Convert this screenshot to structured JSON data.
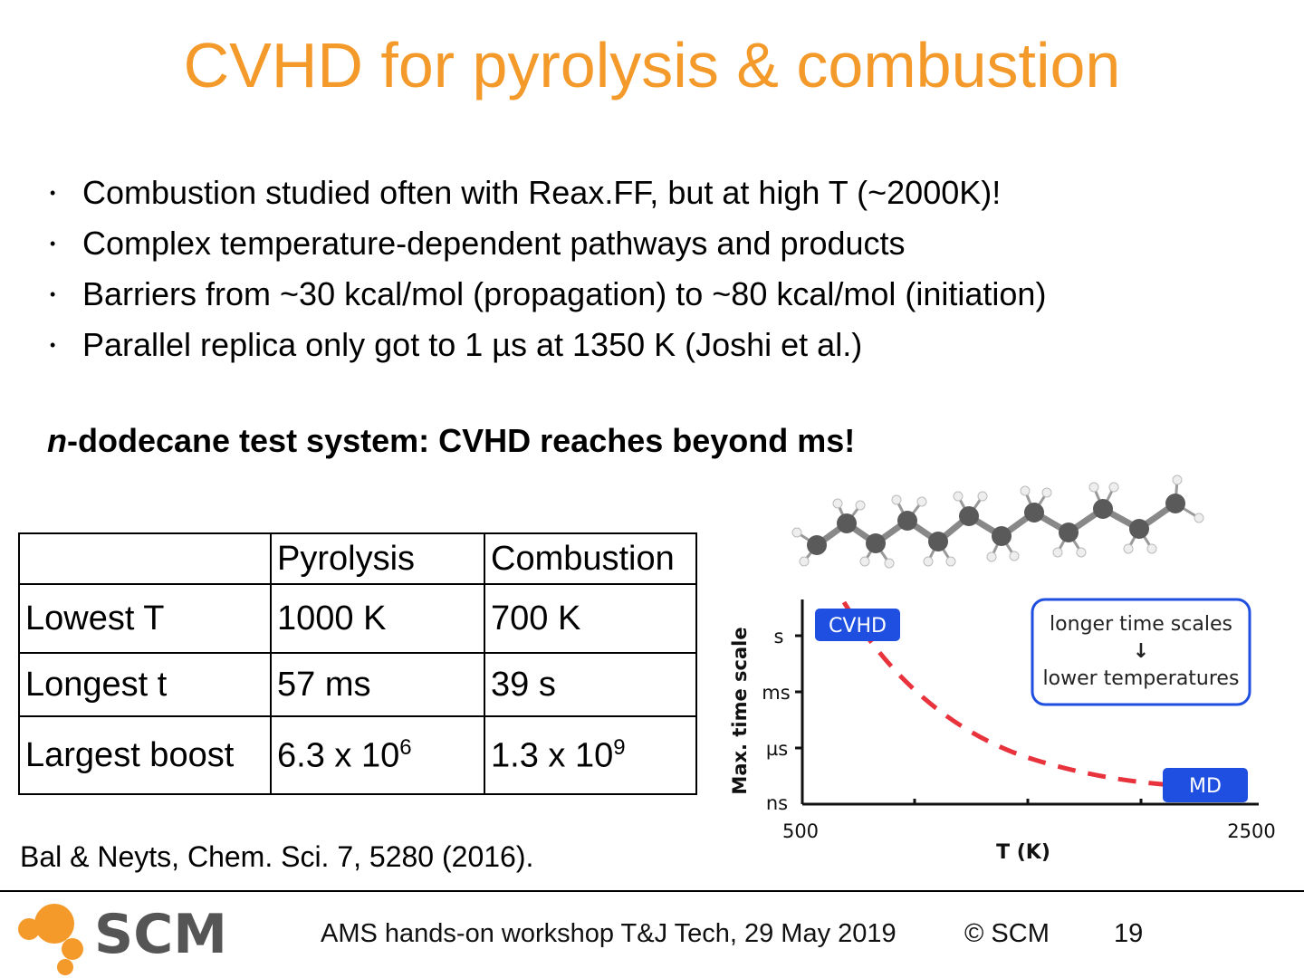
{
  "slide": {
    "title": "CVHD for pyrolysis & combustion",
    "bullets": [
      "Combustion studied often with Reax.FF, but at high T (~2000K)!",
      "Complex temperature-dependent pathways and products",
      "Barriers from ~30 kcal/mol (propagation) to ~80 kcal/mol (initiation)",
      "Parallel replica only got to 1 µs at 1350 K (Joshi et al.)"
    ],
    "bullet_symbol": "•",
    "subheading_italic": "n",
    "subheading_rest": "-dodecane test system: CVHD reaches beyond ms!"
  },
  "table": {
    "headers": [
      "",
      "Pyrolysis",
      "Combustion"
    ],
    "rows": [
      {
        "label": "Lowest T",
        "pyrolysis": "1000 K",
        "combustion": "700 K"
      },
      {
        "label": "Longest t",
        "pyrolysis": "57 ms",
        "combustion": "39 s"
      },
      {
        "label": "Largest boost",
        "pyrolysis_base": "6.3 x 10",
        "pyrolysis_exp": "6",
        "combustion_base": "1.3 x 10",
        "combustion_exp": "9"
      }
    ]
  },
  "citation": "Bal & Neyts, Chem. Sci. 7, 5280 (2016).",
  "figure": {
    "ylabel": "Max. time scale",
    "xlabel": "T (K)",
    "yticks": [
      "s",
      "ms",
      "µs",
      "ns"
    ],
    "xticks": [
      "500",
      "2500"
    ],
    "cvhd_label": "CVHD",
    "md_label": "MD",
    "note_line1": "longer time scales",
    "note_arrow": "↓",
    "note_line2": "lower temperatures",
    "curve_color": "#e8323c",
    "badge_color": "#1f4fe0"
  },
  "footer": {
    "logo_text": "SCM",
    "event": "AMS hands-on workshop T&J Tech, 29 May 2019",
    "copyright": "© SCM",
    "page": "19"
  },
  "colors": {
    "title": "#f39a2b",
    "logo_text": "#555555",
    "logo_dots": "#f39a2b"
  }
}
